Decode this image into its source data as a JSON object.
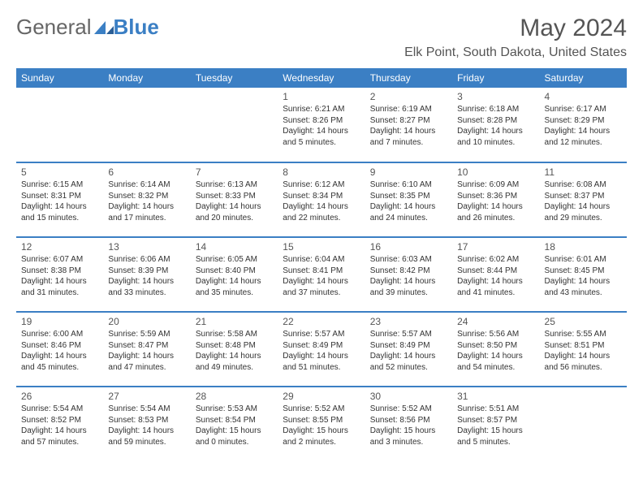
{
  "brand": {
    "part1": "General",
    "part2": "Blue"
  },
  "colors": {
    "accent": "#3b7fc4",
    "text": "#333333",
    "heading": "#555555",
    "bg": "#ffffff",
    "header_text": "#ffffff"
  },
  "title": "May 2024",
  "location": "Elk Point, South Dakota, United States",
  "calendar": {
    "dayHeaders": [
      "Sunday",
      "Monday",
      "Tuesday",
      "Wednesday",
      "Thursday",
      "Friday",
      "Saturday"
    ],
    "startOffset": 3,
    "days": [
      {
        "n": 1,
        "sr": "6:21 AM",
        "ss": "8:26 PM",
        "dl": "14 hours and 5 minutes."
      },
      {
        "n": 2,
        "sr": "6:19 AM",
        "ss": "8:27 PM",
        "dl": "14 hours and 7 minutes."
      },
      {
        "n": 3,
        "sr": "6:18 AM",
        "ss": "8:28 PM",
        "dl": "14 hours and 10 minutes."
      },
      {
        "n": 4,
        "sr": "6:17 AM",
        "ss": "8:29 PM",
        "dl": "14 hours and 12 minutes."
      },
      {
        "n": 5,
        "sr": "6:15 AM",
        "ss": "8:31 PM",
        "dl": "14 hours and 15 minutes."
      },
      {
        "n": 6,
        "sr": "6:14 AM",
        "ss": "8:32 PM",
        "dl": "14 hours and 17 minutes."
      },
      {
        "n": 7,
        "sr": "6:13 AM",
        "ss": "8:33 PM",
        "dl": "14 hours and 20 minutes."
      },
      {
        "n": 8,
        "sr": "6:12 AM",
        "ss": "8:34 PM",
        "dl": "14 hours and 22 minutes."
      },
      {
        "n": 9,
        "sr": "6:10 AM",
        "ss": "8:35 PM",
        "dl": "14 hours and 24 minutes."
      },
      {
        "n": 10,
        "sr": "6:09 AM",
        "ss": "8:36 PM",
        "dl": "14 hours and 26 minutes."
      },
      {
        "n": 11,
        "sr": "6:08 AM",
        "ss": "8:37 PM",
        "dl": "14 hours and 29 minutes."
      },
      {
        "n": 12,
        "sr": "6:07 AM",
        "ss": "8:38 PM",
        "dl": "14 hours and 31 minutes."
      },
      {
        "n": 13,
        "sr": "6:06 AM",
        "ss": "8:39 PM",
        "dl": "14 hours and 33 minutes."
      },
      {
        "n": 14,
        "sr": "6:05 AM",
        "ss": "8:40 PM",
        "dl": "14 hours and 35 minutes."
      },
      {
        "n": 15,
        "sr": "6:04 AM",
        "ss": "8:41 PM",
        "dl": "14 hours and 37 minutes."
      },
      {
        "n": 16,
        "sr": "6:03 AM",
        "ss": "8:42 PM",
        "dl": "14 hours and 39 minutes."
      },
      {
        "n": 17,
        "sr": "6:02 AM",
        "ss": "8:44 PM",
        "dl": "14 hours and 41 minutes."
      },
      {
        "n": 18,
        "sr": "6:01 AM",
        "ss": "8:45 PM",
        "dl": "14 hours and 43 minutes."
      },
      {
        "n": 19,
        "sr": "6:00 AM",
        "ss": "8:46 PM",
        "dl": "14 hours and 45 minutes."
      },
      {
        "n": 20,
        "sr": "5:59 AM",
        "ss": "8:47 PM",
        "dl": "14 hours and 47 minutes."
      },
      {
        "n": 21,
        "sr": "5:58 AM",
        "ss": "8:48 PM",
        "dl": "14 hours and 49 minutes."
      },
      {
        "n": 22,
        "sr": "5:57 AM",
        "ss": "8:49 PM",
        "dl": "14 hours and 51 minutes."
      },
      {
        "n": 23,
        "sr": "5:57 AM",
        "ss": "8:49 PM",
        "dl": "14 hours and 52 minutes."
      },
      {
        "n": 24,
        "sr": "5:56 AM",
        "ss": "8:50 PM",
        "dl": "14 hours and 54 minutes."
      },
      {
        "n": 25,
        "sr": "5:55 AM",
        "ss": "8:51 PM",
        "dl": "14 hours and 56 minutes."
      },
      {
        "n": 26,
        "sr": "5:54 AM",
        "ss": "8:52 PM",
        "dl": "14 hours and 57 minutes."
      },
      {
        "n": 27,
        "sr": "5:54 AM",
        "ss": "8:53 PM",
        "dl": "14 hours and 59 minutes."
      },
      {
        "n": 28,
        "sr": "5:53 AM",
        "ss": "8:54 PM",
        "dl": "15 hours and 0 minutes."
      },
      {
        "n": 29,
        "sr": "5:52 AM",
        "ss": "8:55 PM",
        "dl": "15 hours and 2 minutes."
      },
      {
        "n": 30,
        "sr": "5:52 AM",
        "ss": "8:56 PM",
        "dl": "15 hours and 3 minutes."
      },
      {
        "n": 31,
        "sr": "5:51 AM",
        "ss": "8:57 PM",
        "dl": "15 hours and 5 minutes."
      }
    ],
    "labels": {
      "sunrise": "Sunrise:",
      "sunset": "Sunset:",
      "daylight": "Daylight:"
    }
  }
}
